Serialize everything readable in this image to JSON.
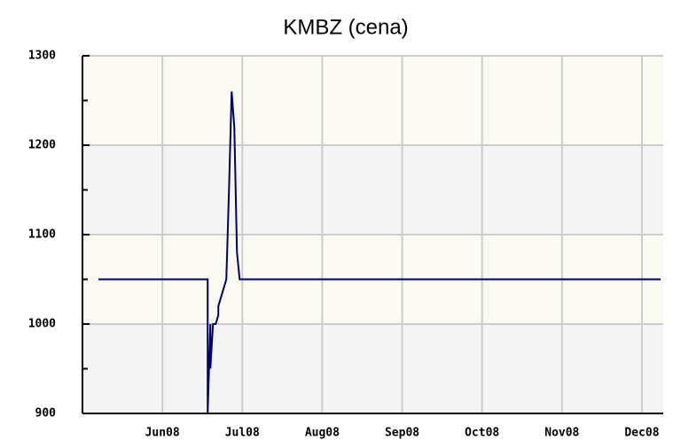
{
  "chart_data": {
    "type": "line",
    "title": "KMBZ (cena)",
    "x": [
      6,
      47,
      47,
      48,
      48,
      49,
      50,
      51,
      51,
      52,
      53,
      54,
      55,
      56,
      57,
      58,
      59,
      217
    ],
    "series": [
      {
        "name": "cena",
        "color": "#000066",
        "values": [
          1050,
          1050,
          900,
          1000,
          950,
          1000,
          1000,
          1010,
          1020,
          1030,
          1040,
          1050,
          1150,
          1260,
          1220,
          1080,
          1050,
          1050
        ]
      }
    ],
    "xlim": [
      0,
      218
    ],
    "xticks": [
      {
        "value": 30,
        "label": "Jun08"
      },
      {
        "value": 60,
        "label": "Jul08"
      },
      {
        "value": 90,
        "label": "Aug08"
      },
      {
        "value": 120,
        "label": "Sep08"
      },
      {
        "value": 150,
        "label": "Oct08"
      },
      {
        "value": 180,
        "label": "Nov08"
      },
      {
        "value": 210,
        "label": "Dec08"
      }
    ],
    "ylim": [
      900,
      1300
    ],
    "yticks": [
      900,
      1000,
      1100,
      1200,
      1300
    ],
    "yminor": [
      950,
      1050,
      1150,
      1250
    ],
    "band_colors": [
      "#f4f4f4",
      "#fafaf2"
    ],
    "grid": true
  }
}
